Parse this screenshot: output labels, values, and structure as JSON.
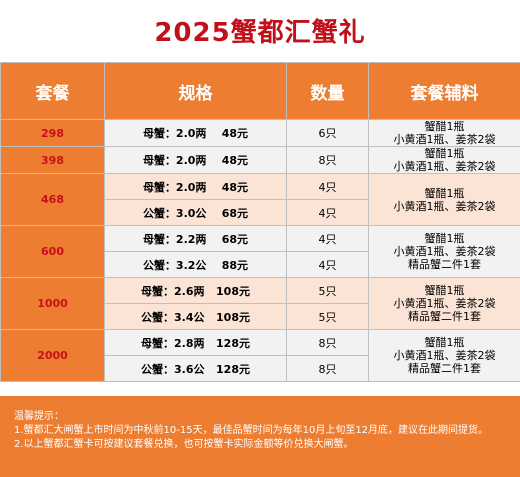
{
  "title": "2025蟹都汇蟹礼",
  "headers": {
    "package": "套餐",
    "spec": "规格",
    "qty": "数量",
    "accessories": "套餐辅料"
  },
  "packages": [
    {
      "price": "298",
      "rows": [
        {
          "spec": "母蟹：2.0两    48元",
          "qty": "6只"
        }
      ],
      "accessories": [
        "蟹醋1瓶",
        "小黄酒1瓶、姜茶2袋"
      ]
    },
    {
      "price": "398",
      "rows": [
        {
          "spec": "母蟹：2.0两    48元",
          "qty": "8只"
        }
      ],
      "accessories": [
        "蟹醋1瓶",
        "小黄酒1瓶、姜茶2袋"
      ]
    },
    {
      "price": "468",
      "rows": [
        {
          "spec": "母蟹：2.0两    48元",
          "qty": "4只"
        },
        {
          "spec": "公蟹：3.0公    68元",
          "qty": "4只"
        }
      ],
      "accessories": [
        "蟹醋1瓶",
        "小黄酒1瓶、姜茶2袋"
      ]
    },
    {
      "price": "600",
      "rows": [
        {
          "spec": "母蟹：2.2两    68元",
          "qty": "4只"
        },
        {
          "spec": "公蟹：3.2公    88元",
          "qty": "4只"
        }
      ],
      "accessories": [
        "蟹醋1瓶",
        "小黄酒1瓶、姜茶2袋",
        "精品蟹二件1套"
      ]
    },
    {
      "price": "1000",
      "rows": [
        {
          "spec": "母蟹：2.6两   108元",
          "qty": "5只"
        },
        {
          "spec": "公蟹：3.4公   108元",
          "qty": "5只"
        }
      ],
      "accessories": [
        "蟹醋1瓶",
        "小黄酒1瓶、姜茶2袋",
        "精品蟹二件1套"
      ]
    },
    {
      "price": "2000",
      "rows": [
        {
          "spec": "母蟹：2.8两   128元",
          "qty": "8只"
        },
        {
          "spec": "公蟹：3.6公   128元",
          "qty": "8只"
        }
      ],
      "accessories": [
        "蟹醋1瓶",
        "小黄酒1瓶、姜茶2袋",
        "精品蟹二件1套"
      ]
    }
  ],
  "notes": {
    "heading": "温馨提示：",
    "lines": [
      "1.蟹都汇大闸蟹上市时间为中秋前10-15天，最佳品蟹时间为每年10月上旬至12月底，建议在此期间提货。",
      "2.以上蟹都汇蟹卡可按建议套餐兑换，也可按蟹卡实际金额等价兑换大闸蟹。"
    ]
  },
  "colors": {
    "title": "#c0111a",
    "header_bg": "#ed7d31",
    "price_text": "#d0101a",
    "row_gray": "#f2f2f2",
    "row_peach": "#fbe4d5"
  }
}
